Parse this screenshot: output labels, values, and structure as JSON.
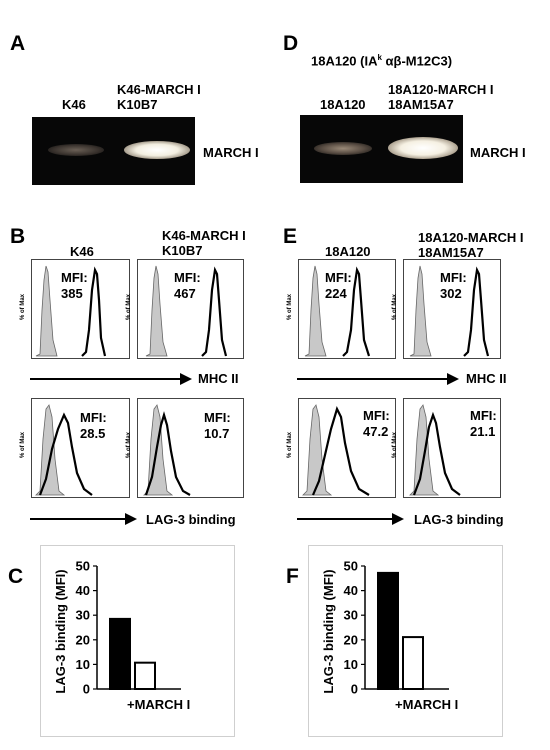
{
  "panels": {
    "A": {
      "letter": "A",
      "lane1": "K46",
      "lane2_line1": "K46-MARCH I",
      "lane2_line2": "K10B7",
      "gel_label": "MARCH I"
    },
    "D": {
      "letter": "D",
      "title_pre": "18A120 (IA",
      "title_sup": "k",
      "title_post": " αβ-M12C3)",
      "lane1": "18A120",
      "lane2_line1": "18A120-MARCH I",
      "lane2_line2": "18AM15A7",
      "gel_label": "MARCH I"
    },
    "B": {
      "letter": "B",
      "col1": "K46",
      "col2_line1": "K46-MARCH I",
      "col2_line2": "K10B7",
      "ylabel": "% of Max",
      "mhc_mfi_1": "385",
      "mhc_mfi_2": "467",
      "lag_mfi_1": "28.5",
      "lag_mfi_2": "10.7",
      "mfi_label": "MFI:",
      "mhc_axis": "MHC II",
      "lag_axis": "LAG-3 binding"
    },
    "E": {
      "letter": "E",
      "col1": "18A120",
      "col2_line1": "18A120-MARCH I",
      "col2_line2": "18AM15A7",
      "ylabel": "% of Max",
      "mhc_mfi_1": "224",
      "mhc_mfi_2": "302",
      "lag_mfi_1": "47.2",
      "lag_mfi_2": "21.1",
      "mfi_label": "MFI:",
      "mhc_axis": "MHC II",
      "lag_axis": "LAG-3 binding"
    },
    "C": {
      "letter": "C"
    },
    "F": {
      "letter": "F"
    }
  },
  "chart_data": [
    {
      "type": "bar",
      "panel": "C",
      "categories": [
        "",
        "+MARCH I"
      ],
      "values": [
        28.5,
        10.7
      ],
      "bar_fills": [
        "#000000",
        "#ffffff"
      ],
      "ylabel": "LAG-3 binding (MFI)",
      "xlabel": "+MARCH I",
      "ylim": [
        0,
        50
      ],
      "yticks": [
        0,
        10,
        20,
        30,
        40,
        50
      ],
      "grid": false
    },
    {
      "type": "bar",
      "panel": "F",
      "categories": [
        "",
        "+MARCH I"
      ],
      "values": [
        47.2,
        21.1
      ],
      "bar_fills": [
        "#000000",
        "#ffffff"
      ],
      "ylabel": "LAG-3 binding (MFI)",
      "xlabel": "+MARCH I",
      "ylim": [
        0,
        50
      ],
      "yticks": [
        0,
        10,
        20,
        30,
        40,
        50
      ],
      "grid": false
    }
  ]
}
